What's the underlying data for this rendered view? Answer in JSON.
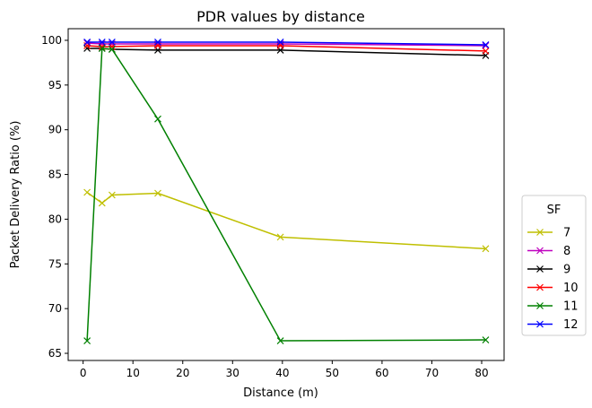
{
  "chart_data": {
    "type": "line",
    "title": "PDR values by distance",
    "xlabel": "Distance (m)",
    "ylabel": "Packet Delivery Ratio (%)",
    "xlim": [
      -3,
      84.5
    ],
    "ylim": [
      64.2,
      101.3
    ],
    "xticks": [
      0,
      10,
      20,
      30,
      40,
      50,
      60,
      70,
      80
    ],
    "yticks": [
      65,
      70,
      75,
      80,
      85,
      90,
      95,
      100
    ],
    "grid": false,
    "marker": "x",
    "legend": {
      "title": "SF",
      "placement": "center-right-outside"
    },
    "x": [
      0.8,
      3.8,
      5.8,
      15,
      39.6,
      80.8
    ],
    "series": [
      {
        "name": "7",
        "color": "#bfbf00",
        "values": [
          83.0,
          81.8,
          82.7,
          82.9,
          78.0,
          76.7
        ]
      },
      {
        "name": "8",
        "color": "#bf00bf",
        "values": [
          99.7,
          99.6,
          99.6,
          99.6,
          99.6,
          99.4
        ]
      },
      {
        "name": "9",
        "color": "#000000",
        "values": [
          99.1,
          99.1,
          99.0,
          98.9,
          98.9,
          98.3
        ]
      },
      {
        "name": "10",
        "color": "#ff0000",
        "values": [
          99.4,
          99.3,
          99.3,
          99.4,
          99.4,
          98.8
        ]
      },
      {
        "name": "11",
        "color": "#008000",
        "values": [
          66.4,
          99.1,
          99.0,
          91.2,
          66.4,
          66.5
        ]
      },
      {
        "name": "12",
        "color": "#0000ff",
        "values": [
          99.8,
          99.8,
          99.8,
          99.8,
          99.8,
          99.5
        ]
      }
    ]
  }
}
